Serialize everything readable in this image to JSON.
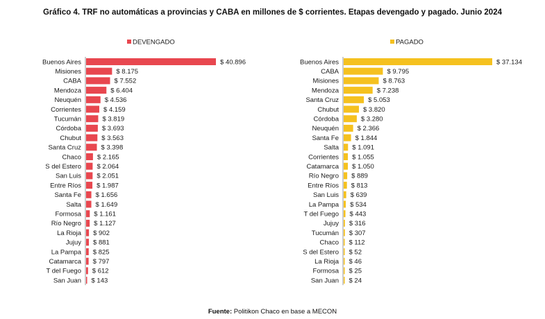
{
  "title": "Gráfico 4. TRF no automáticas a provincias y CABA en millones de $ corrientes. Etapas devengado y pagado. Junio 2024",
  "source": {
    "label": "Fuente:",
    "text": "Politikon Chaco en base a MECON"
  },
  "colors": {
    "devengado": "#e8474f",
    "pagado": "#f5c11f",
    "axis": "#9a9a9a"
  },
  "chart_data": [
    {
      "type": "bar",
      "orientation": "horizontal",
      "legend": "DEVENGADO",
      "legend_position": "top",
      "value_prefix": "$ ",
      "grid": false,
      "xlim": [
        0,
        40896
      ],
      "categories": [
        "Buenos Aires",
        "Misiones",
        "CABA",
        "Mendoza",
        "Neuquén",
        "Corrientes",
        "Tucumán",
        "Córdoba",
        "Chubut",
        "Santa Cruz",
        "Chaco",
        "S del Estero",
        "San Luis",
        "Entre Ríos",
        "Santa Fe",
        "Salta",
        "Formosa",
        "Río Negro",
        "La Rioja",
        "Jujuy",
        "La Pampa",
        "Catamarca",
        "T del Fuego",
        "San Juan"
      ],
      "values": [
        40896,
        8175,
        7552,
        6404,
        4536,
        4159,
        3819,
        3693,
        3563,
        3398,
        2165,
        2064,
        2051,
        1987,
        1656,
        1649,
        1161,
        1127,
        902,
        881,
        825,
        797,
        612,
        143
      ],
      "labels": [
        "40.896",
        "8.175",
        "7.552",
        "6.404",
        "4.536",
        "4.159",
        "3.819",
        "3.693",
        "3.563",
        "3.398",
        "2.165",
        "2.064",
        "2.051",
        "1.987",
        "1.656",
        "1.649",
        "1.161",
        "1.127",
        "902",
        "881",
        "825",
        "797",
        "612",
        "143"
      ]
    },
    {
      "type": "bar",
      "orientation": "horizontal",
      "legend": "PAGADO",
      "legend_position": "top",
      "value_prefix": "$ ",
      "grid": false,
      "xlim": [
        0,
        37134
      ],
      "categories": [
        "Buenos Aires",
        "CABA",
        "Misiones",
        "Mendoza",
        "Santa Cruz",
        "Chubut",
        "Córdoba",
        "Neuquén",
        "Santa Fe",
        "Salta",
        "Corrientes",
        "Catamarca",
        "Río Negro",
        "Entre Ríos",
        "San Luis",
        "La Pampa",
        "T del Fuego",
        "Jujuy",
        "Tucumán",
        "Chaco",
        "S del Estero",
        "La Rioja",
        "Formosa",
        "San Juan"
      ],
      "values": [
        37134,
        9795,
        8763,
        7238,
        5053,
        3820,
        3280,
        2366,
        1844,
        1091,
        1055,
        1050,
        889,
        813,
        639,
        534,
        443,
        316,
        307,
        112,
        52,
        46,
        25,
        24
      ],
      "labels": [
        "37.134",
        "9.795",
        "8.763",
        "7.238",
        "5.053",
        "3.820",
        "3.280",
        "2.366",
        "1.844",
        "1.091",
        "1.055",
        "1.050",
        "889",
        "813",
        "639",
        "534",
        "443",
        "316",
        "307",
        "112",
        "52",
        "46",
        "25",
        "24"
      ]
    }
  ]
}
